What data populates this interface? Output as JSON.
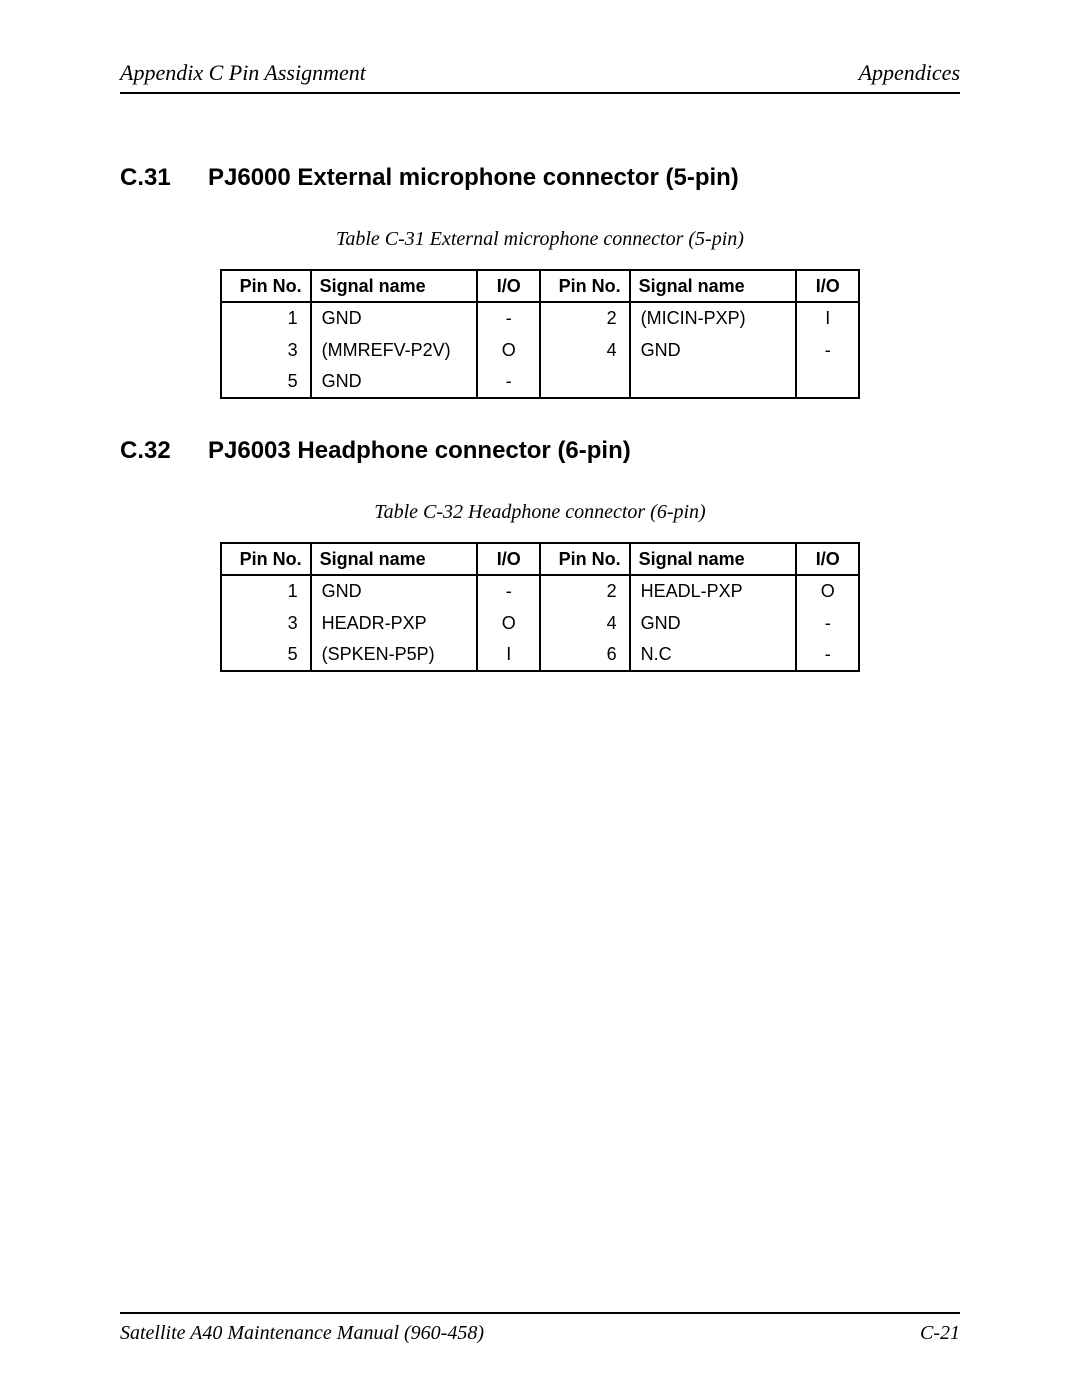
{
  "header": {
    "left": "Appendix C  Pin Assignment",
    "right": "Appendices"
  },
  "section1": {
    "num": "C.31",
    "title": "PJ6000  External microphone connector (5-pin)",
    "caption": "Table C-31  External microphone connector (5-pin)",
    "columns": [
      "Pin No.",
      "Signal name",
      "I/O",
      "Pin No.",
      "Signal name",
      "I/O"
    ],
    "rows": [
      [
        "1",
        "GND",
        "-",
        "2",
        "(MICIN-PXP)",
        "I"
      ],
      [
        "3",
        "(MMREFV-P2V)",
        "O",
        "4",
        "GND",
        "-"
      ],
      [
        "5",
        "GND",
        "-",
        "",
        "",
        ""
      ]
    ]
  },
  "section2": {
    "num": "C.32",
    "title": "PJ6003  Headphone connector (6-pin)",
    "caption": "Table C-32 Headphone connector (6-pin)",
    "columns": [
      "Pin No.",
      "Signal name",
      "I/O",
      "Pin No.",
      "Signal name",
      "I/O"
    ],
    "rows": [
      [
        "1",
        "GND",
        "-",
        "2",
        "HEADL-PXP",
        "O"
      ],
      [
        "3",
        "HEADR-PXP",
        "O",
        "4",
        "GND",
        "-"
      ],
      [
        "5",
        "(SPKEN-P5P)",
        "I",
        "6",
        "N.C",
        "-"
      ]
    ]
  },
  "footer": {
    "left": "Satellite A40 Maintenance Manual (960-458)",
    "right": "C-21"
  }
}
